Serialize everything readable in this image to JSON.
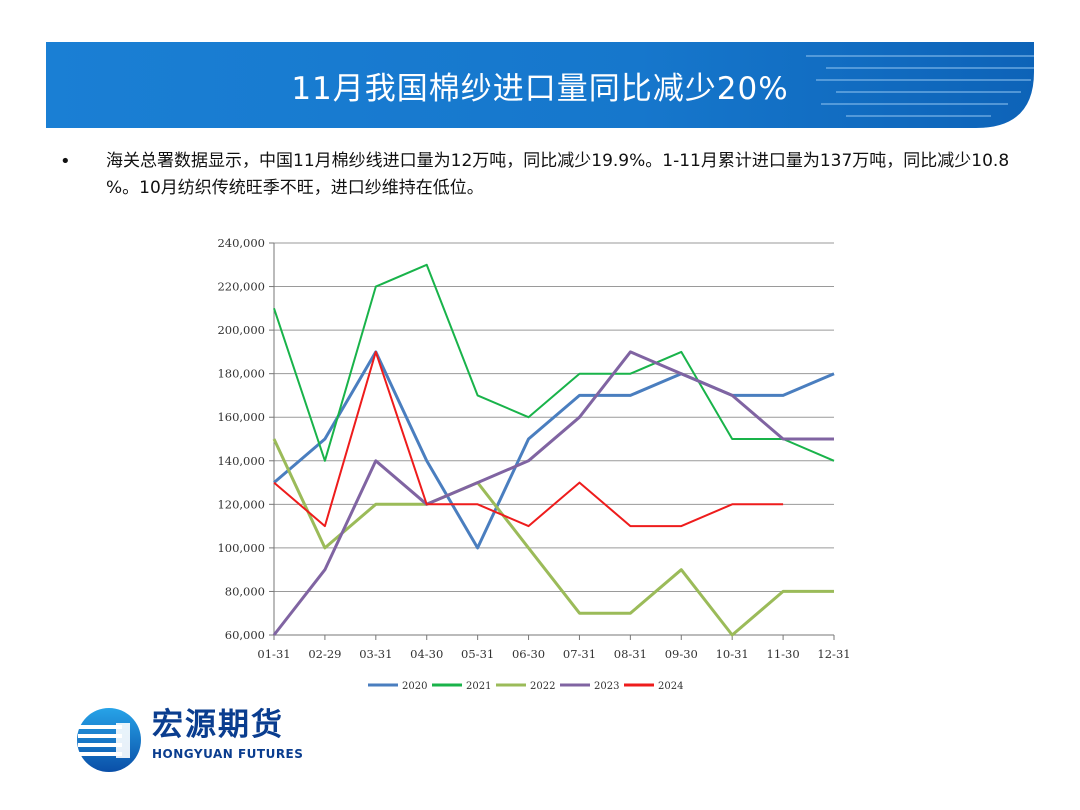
{
  "header": {
    "title": "11月我国棉纱进口量同比减少20%"
  },
  "bullet": {
    "marker": "•",
    "text": "海关总署数据显示，中国11月棉纱线进口量为12万吨，同比减少19.9%。1-11月累计进口量为137万吨，同比减少10.8 %。10月纺织传统旺季不旺，进口纱维持在低位。"
  },
  "chart_data": {
    "type": "line",
    "categories": [
      "01-31",
      "02-29",
      "03-31",
      "04-30",
      "05-31",
      "06-30",
      "07-31",
      "08-31",
      "09-30",
      "10-31",
      "11-30",
      "12-31"
    ],
    "y_tick_labels": [
      "60,000",
      "80,000",
      "100,000",
      "120,000",
      "140,000",
      "160,000",
      "180,000",
      "200,000",
      "220,000",
      "240,000"
    ],
    "ylim": [
      60000,
      240000
    ],
    "grid": true,
    "legend_position": "bottom",
    "series": [
      {
        "name": "2020",
        "color": "#4a7ebf",
        "width": 3,
        "values": [
          130000,
          150000,
          190000,
          140000,
          100000,
          150000,
          170000,
          170000,
          180000,
          170000,
          170000,
          180000
        ]
      },
      {
        "name": "2021",
        "color": "#19b34a",
        "width": 2,
        "values": [
          210000,
          140000,
          220000,
          230000,
          170000,
          160000,
          180000,
          180000,
          190000,
          150000,
          150000,
          140000
        ]
      },
      {
        "name": "2022",
        "color": "#9bbb59",
        "width": 3,
        "values": [
          150000,
          100000,
          120000,
          120000,
          130000,
          100000,
          70000,
          70000,
          90000,
          60000,
          80000,
          80000
        ]
      },
      {
        "name": "2023",
        "color": "#8064a2",
        "width": 3,
        "values": [
          60000,
          90000,
          140000,
          120000,
          130000,
          140000,
          160000,
          190000,
          180000,
          170000,
          150000,
          150000
        ]
      },
      {
        "name": "2024",
        "color": "#ee1c1c",
        "width": 2,
        "values": [
          130000,
          110000,
          190000,
          120000,
          120000,
          110000,
          130000,
          110000,
          110000,
          120000,
          120000,
          null
        ]
      }
    ]
  },
  "logo": {
    "cn": "宏源期货",
    "en": "HONGYUAN FUTURES",
    "color": "#0a3d8f"
  }
}
